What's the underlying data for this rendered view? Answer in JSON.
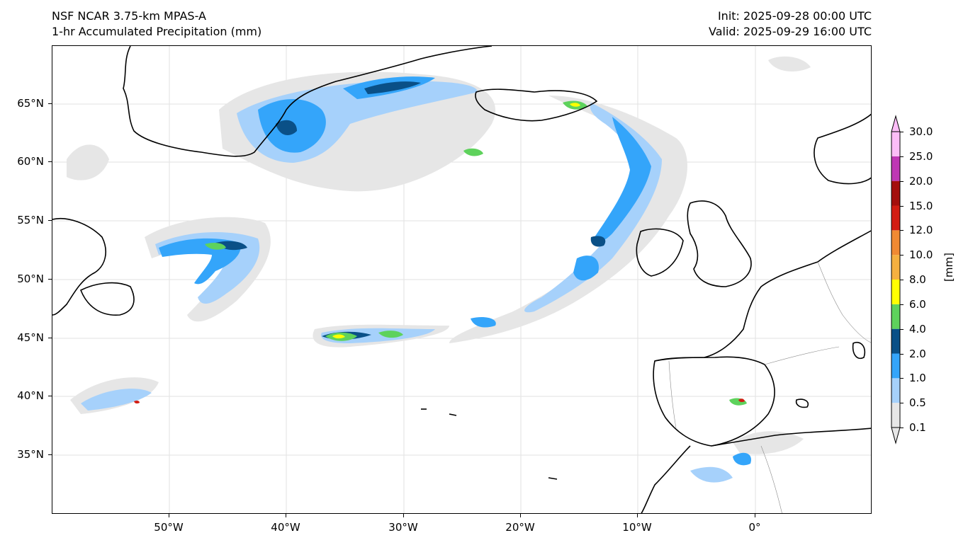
{
  "header": {
    "model": "NSF NCAR 3.75-km MPAS-A",
    "field": "1-hr Accumulated Precipitation (mm)",
    "init": "Init: 2025-09-28 00:00 UTC",
    "valid": "Valid: 2025-09-29 16:00 UTC"
  },
  "map": {
    "lat_range": [
      30,
      70
    ],
    "lon_range": [
      -60,
      10
    ],
    "lat_ticks": [
      {
        "value": 65,
        "label": "65°N"
      },
      {
        "value": 60,
        "label": "60°N"
      },
      {
        "value": 55,
        "label": "55°N"
      },
      {
        "value": 50,
        "label": "50°N"
      },
      {
        "value": 45,
        "label": "45°N"
      },
      {
        "value": 40,
        "label": "40°N"
      },
      {
        "value": 35,
        "label": "35°N"
      }
    ],
    "lon_ticks": [
      {
        "value": -50,
        "label": "50°W"
      },
      {
        "value": -40,
        "label": "40°W"
      },
      {
        "value": -30,
        "label": "30°W"
      },
      {
        "value": -20,
        "label": "20°W"
      },
      {
        "value": -10,
        "label": "10°W"
      },
      {
        "value": 0,
        "label": "0°"
      }
    ]
  },
  "colorbar": {
    "unit": "[mm]",
    "levels": [
      "0.1",
      "0.5",
      "1.0",
      "2.0",
      "4.0",
      "6.0",
      "8.0",
      "10.0",
      "12.0",
      "15.0",
      "20.0",
      "25.0",
      "30.0"
    ],
    "colors": [
      "#e6e6e6",
      "#a6d1fb",
      "#34a5fa",
      "#0a5087",
      "#5ed25c",
      "#ffff00",
      "#f5b040",
      "#f08a33",
      "#d21d13",
      "#a40f0d",
      "#bf37b4",
      "#fcbdf7"
    ]
  }
}
